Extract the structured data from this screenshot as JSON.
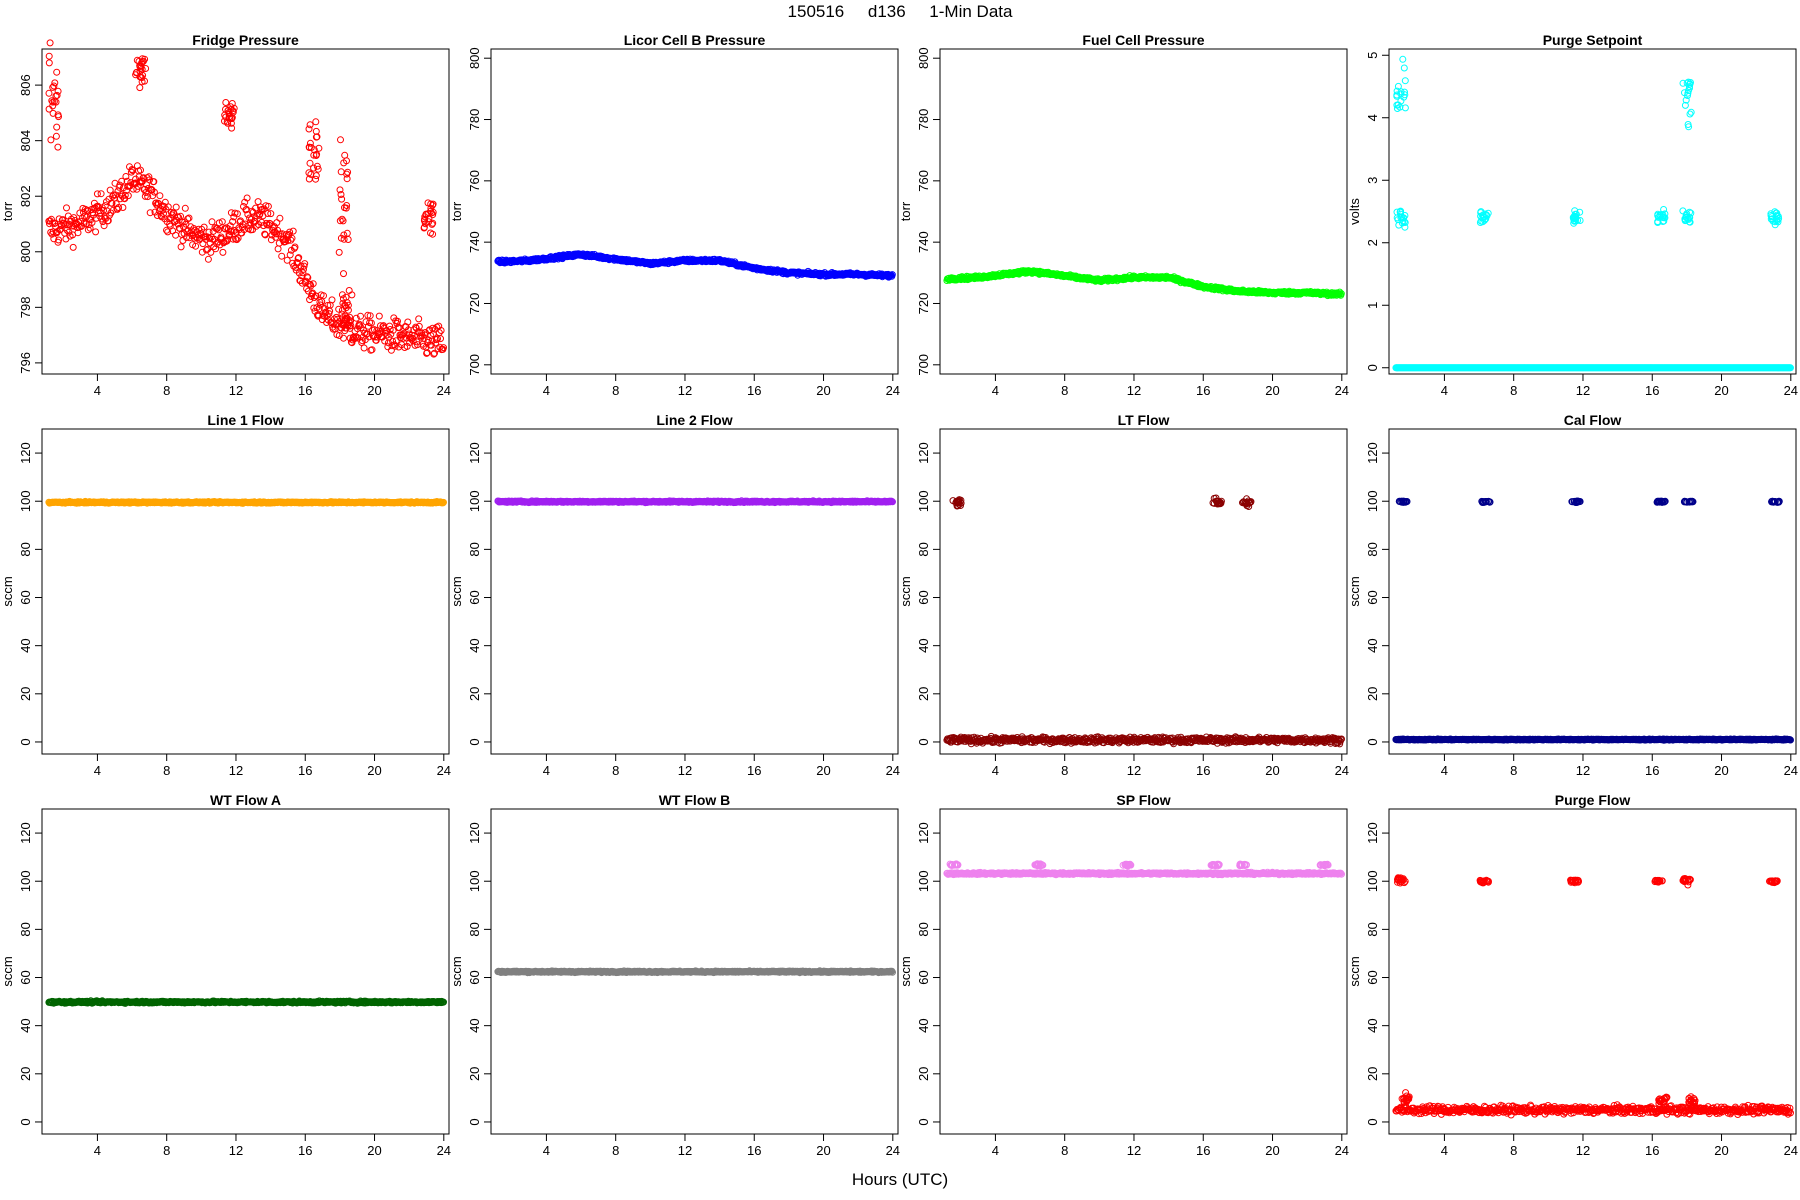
{
  "figure": {
    "title": "150516     d136     1-Min Data",
    "x_label": "Hours (UTC)"
  },
  "chart_data": [
    {
      "type": "scatter",
      "title": "Fridge Pressure",
      "ylabel": "torr",
      "color": "#ff0000",
      "xlim": [
        0.8,
        24.3
      ],
      "ylim": [
        795.6,
        807.3
      ],
      "xticks": [
        4,
        8,
        12,
        16,
        20,
        24
      ],
      "yticks": [
        796,
        798,
        800,
        802,
        804,
        806
      ],
      "pattern": "fridge"
    },
    {
      "type": "scatter",
      "title": "Licor Cell B Pressure",
      "ylabel": "torr",
      "color": "#0000ff",
      "xlim": [
        0.8,
        24.3
      ],
      "ylim": [
        697,
        803
      ],
      "xticks": [
        4,
        8,
        12,
        16,
        20,
        24
      ],
      "yticks": [
        700,
        720,
        740,
        760,
        780,
        800
      ],
      "profile": [
        [
          1,
          733.5
        ],
        [
          3,
          734
        ],
        [
          6,
          736
        ],
        [
          8,
          734.5
        ],
        [
          10,
          733
        ],
        [
          12,
          734
        ],
        [
          14,
          734
        ],
        [
          16,
          731.5
        ],
        [
          18,
          730
        ],
        [
          20,
          729.5
        ],
        [
          22,
          729.5
        ],
        [
          24,
          729
        ]
      ]
    },
    {
      "type": "scatter",
      "title": "Fuel Cell Pressure",
      "ylabel": "torr",
      "color": "#00ff00",
      "xlim": [
        0.8,
        24.3
      ],
      "ylim": [
        697,
        803
      ],
      "xticks": [
        4,
        8,
        12,
        16,
        20,
        24
      ],
      "yticks": [
        700,
        720,
        740,
        760,
        780,
        800
      ],
      "profile": [
        [
          1,
          728
        ],
        [
          3,
          728.5
        ],
        [
          6,
          730.5
        ],
        [
          8,
          729
        ],
        [
          10,
          727.5
        ],
        [
          12,
          728.5
        ],
        [
          14,
          728.5
        ],
        [
          16,
          725.5
        ],
        [
          18,
          724
        ],
        [
          20,
          723.5
        ],
        [
          22,
          723.5
        ],
        [
          24,
          723
        ]
      ]
    },
    {
      "type": "scatter",
      "title": "Purge Setpoint",
      "ylabel": "volts",
      "color": "#00ffff",
      "xlim": [
        0.8,
        24.3
      ],
      "ylim": [
        -0.1,
        5.1
      ],
      "xticks": [
        4,
        8,
        12,
        16,
        20,
        24
      ],
      "yticks": [
        0,
        1,
        2,
        3,
        4,
        5
      ],
      "base": 0,
      "base_noise": 0,
      "clusters": [
        [
          1.5,
          4.4,
          0.45
        ],
        [
          1.5,
          2.4,
          0.1
        ],
        [
          6.3,
          2.4,
          0.1
        ],
        [
          11.6,
          2.4,
          0.1
        ],
        [
          16.5,
          2.4,
          0.1
        ],
        [
          18.0,
          4.4,
          0.5
        ],
        [
          18.0,
          2.4,
          0.1
        ],
        [
          23.1,
          2.4,
          0.1
        ]
      ]
    },
    {
      "type": "scatter",
      "title": "Line 1 Flow",
      "ylabel": "sccm",
      "color": "#ffa500",
      "xlim": [
        0.8,
        24.3
      ],
      "ylim": [
        -5,
        130
      ],
      "xticks": [
        4,
        8,
        12,
        16,
        20,
        24
      ],
      "yticks": [
        0,
        20,
        40,
        60,
        80,
        100,
        120
      ],
      "base": 99.5,
      "base_noise": 0.3
    },
    {
      "type": "scatter",
      "title": "Line 2 Flow",
      "ylabel": "sccm",
      "color": "#a020f0",
      "xlim": [
        0.8,
        24.3
      ],
      "ylim": [
        -5,
        130
      ],
      "xticks": [
        4,
        8,
        12,
        16,
        20,
        24
      ],
      "yticks": [
        0,
        20,
        40,
        60,
        80,
        100,
        120
      ],
      "base": 99.8,
      "base_noise": 0.3
    },
    {
      "type": "scatter",
      "title": "LT Flow",
      "ylabel": "sccm",
      "color": "#8b0000",
      "xlim": [
        0.8,
        24.3
      ],
      "ylim": [
        -5,
        130
      ],
      "xticks": [
        4,
        8,
        12,
        16,
        20,
        24
      ],
      "yticks": [
        0,
        20,
        40,
        60,
        80,
        100,
        120
      ],
      "base": 0.8,
      "base_noise": 1.2,
      "clusters": [
        [
          1.8,
          99.5,
          1.5
        ],
        [
          16.8,
          99.5,
          1.5
        ],
        [
          18.5,
          99.5,
          1.5
        ]
      ]
    },
    {
      "type": "scatter",
      "title": "Cal Flow",
      "ylabel": "sccm",
      "color": "#00008b",
      "xlim": [
        0.8,
        24.3
      ],
      "ylim": [
        -5,
        130
      ],
      "xticks": [
        4,
        8,
        12,
        16,
        20,
        24
      ],
      "yticks": [
        0,
        20,
        40,
        60,
        80,
        100,
        120
      ],
      "base": 1,
      "base_noise": 0.2,
      "clusters": [
        [
          1.6,
          99.8,
          0.3
        ],
        [
          6.4,
          99.8,
          0.3
        ],
        [
          11.6,
          99.8,
          0.3
        ],
        [
          16.5,
          99.8,
          0.3
        ],
        [
          18.1,
          99.8,
          0.3
        ],
        [
          23.1,
          99.8,
          0.3
        ]
      ]
    },
    {
      "type": "scatter",
      "title": "WT Flow A",
      "ylabel": "sccm",
      "color": "#006400",
      "xlim": [
        0.8,
        24.3
      ],
      "ylim": [
        -5,
        130
      ],
      "xticks": [
        4,
        8,
        12,
        16,
        20,
        24
      ],
      "yticks": [
        0,
        20,
        40,
        60,
        80,
        100,
        120
      ],
      "base": 49.8,
      "base_noise": 0.4
    },
    {
      "type": "scatter",
      "title": "WT Flow B",
      "ylabel": "sccm",
      "color": "#808080",
      "xlim": [
        0.8,
        24.3
      ],
      "ylim": [
        -5,
        130
      ],
      "xticks": [
        4,
        8,
        12,
        16,
        20,
        24
      ],
      "yticks": [
        0,
        20,
        40,
        60,
        80,
        100,
        120
      ],
      "base": 62.4,
      "base_noise": 0.3
    },
    {
      "type": "scatter",
      "title": "SP Flow",
      "ylabel": "sccm",
      "color": "#ee82ee",
      "xlim": [
        0.8,
        24.3
      ],
      "ylim": [
        -5,
        130
      ],
      "xticks": [
        4,
        8,
        12,
        16,
        20,
        24
      ],
      "yticks": [
        0,
        20,
        40,
        60,
        80,
        100,
        120
      ],
      "base": 103.2,
      "base_noise": 0.4,
      "clusters": [
        [
          1.6,
          106.8,
          0.4
        ],
        [
          6.5,
          106.8,
          0.4
        ],
        [
          11.6,
          106.8,
          0.4
        ],
        [
          16.7,
          106.8,
          0.4
        ],
        [
          18.3,
          106.8,
          0.4
        ],
        [
          23.0,
          106.8,
          0.4
        ]
      ]
    },
    {
      "type": "scatter",
      "title": "Purge Flow",
      "ylabel": "sccm",
      "color": "#ff0000",
      "xlim": [
        0.8,
        24.3
      ],
      "ylim": [
        -5,
        130
      ],
      "xticks": [
        4,
        8,
        12,
        16,
        20,
        24
      ],
      "yticks": [
        0,
        20,
        40,
        60,
        80,
        100,
        120
      ],
      "base": 5,
      "base_noise": 1.6,
      "clusters": [
        [
          1.5,
          100.5,
          1.5
        ],
        [
          6.3,
          100,
          0.6
        ],
        [
          11.5,
          100,
          0.6
        ],
        [
          16.4,
          100,
          0.6
        ],
        [
          18.0,
          100.5,
          1.5
        ],
        [
          23.0,
          100,
          0.6
        ],
        [
          1.8,
          9.5,
          2.0
        ],
        [
          16.6,
          9,
          2.0
        ],
        [
          18.3,
          8.5,
          2.0
        ]
      ]
    }
  ]
}
